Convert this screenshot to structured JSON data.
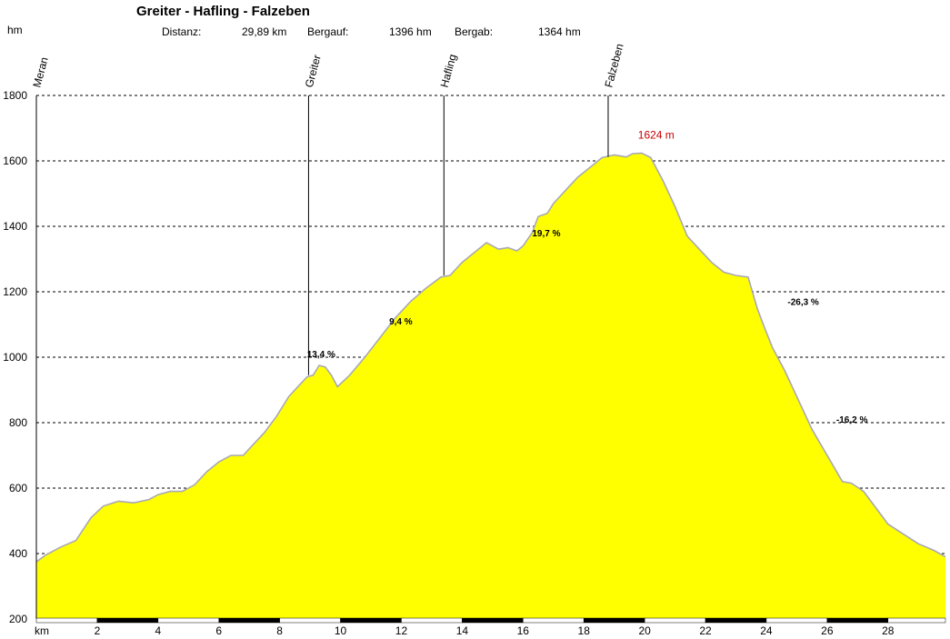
{
  "header": {
    "title": "Greiter - Hafling - Falzeben",
    "distance_label": "Distanz:",
    "distance_value": "29,89 km",
    "ascent_label": "Bergauf:",
    "ascent_value": "1396 hm",
    "descent_label": "Bergab:",
    "descent_value": "1364 hm"
  },
  "chart_data": {
    "type": "area",
    "xlabel": "km",
    "ylabel": "hm",
    "xlim": [
      0,
      29.89
    ],
    "ylim": [
      200,
      1800
    ],
    "x_ticks": [
      2,
      4,
      6,
      8,
      10,
      12,
      14,
      16,
      18,
      20,
      22,
      24,
      26,
      28
    ],
    "y_ticks": [
      200,
      400,
      600,
      800,
      1000,
      1200,
      1400,
      1600,
      1800
    ],
    "grid": "horizontal dashed",
    "fill_color": "#ffff00",
    "line_color": "#a8a8b8",
    "x": [
      0,
      0.3,
      0.8,
      1.3,
      1.8,
      2.2,
      2.7,
      3.2,
      3.7,
      4.0,
      4.4,
      4.8,
      5.2,
      5.6,
      6.0,
      6.4,
      6.8,
      7.1,
      7.5,
      7.9,
      8.3,
      8.6,
      8.9,
      9.1,
      9.3,
      9.5,
      9.7,
      9.9,
      10.3,
      10.8,
      11.3,
      11.8,
      12.3,
      12.8,
      13.3,
      13.6,
      14.0,
      14.4,
      14.8,
      15.0,
      15.2,
      15.5,
      15.8,
      16.0,
      16.3,
      16.5,
      16.8,
      17.0,
      17.4,
      17.8,
      18.2,
      18.6,
      19.0,
      19.4,
      19.6,
      19.9,
      20.2,
      20.6,
      21.0,
      21.4,
      21.8,
      22.2,
      22.6,
      23.0,
      23.4,
      23.7,
      23.9,
      24.2,
      24.6,
      25.0,
      25.5,
      26.0,
      26.5,
      26.8,
      27.2,
      27.6,
      28.0,
      28.5,
      29.0,
      29.5,
      29.89
    ],
    "y": [
      375,
      395,
      420,
      440,
      510,
      545,
      560,
      555,
      565,
      580,
      590,
      590,
      610,
      650,
      680,
      700,
      700,
      730,
      770,
      820,
      880,
      910,
      940,
      945,
      975,
      970,
      945,
      910,
      945,
      1000,
      1060,
      1120,
      1170,
      1210,
      1245,
      1250,
      1290,
      1320,
      1350,
      1340,
      1330,
      1335,
      1325,
      1340,
      1380,
      1430,
      1440,
      1470,
      1510,
      1550,
      1580,
      1610,
      1618,
      1612,
      1622,
      1624,
      1610,
      1540,
      1460,
      1370,
      1330,
      1290,
      1260,
      1250,
      1245,
      1150,
      1100,
      1030,
      960,
      880,
      780,
      700,
      620,
      615,
      590,
      540,
      490,
      460,
      430,
      410,
      390
    ],
    "max_label": {
      "x": 19.9,
      "y": 1624,
      "text": "1624 m"
    },
    "waypoints": [
      {
        "name": "Meran",
        "x": 0,
        "y": 375
      },
      {
        "name": "Greiter",
        "x": 8.95,
        "y": 945
      },
      {
        "name": "Hafling",
        "x": 13.4,
        "y": 1250
      },
      {
        "name": "Falzeben",
        "x": 18.8,
        "y": 1612
      }
    ],
    "gradients": [
      {
        "text": "13,4 %",
        "x": 8.9,
        "y": 1000
      },
      {
        "text": "9,4 %",
        "x": 11.6,
        "y": 1100
      },
      {
        "text": "19,7 %",
        "x": 16.3,
        "y": 1370
      },
      {
        "text": "-26,3 %",
        "x": 24.7,
        "y": 1160
      },
      {
        "text": "-16,2 %",
        "x": 26.3,
        "y": 800
      }
    ]
  }
}
